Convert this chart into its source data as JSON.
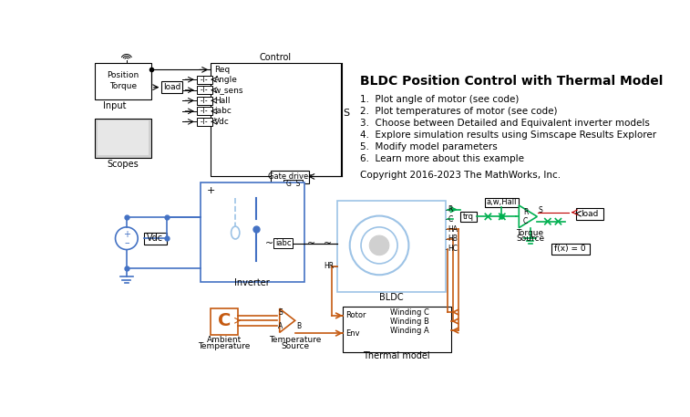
{
  "title": "BLDC Position Control with Thermal Model",
  "bullet_points": [
    "1.  Plot angle of motor (see code)",
    "2.  Plot temperatures of motor (see code)",
    "3.  Choose between Detailed and Equivalent inverter models",
    "4.  Explore simulation results using Simscape Results Explorer",
    "5.  Modify model parameters",
    "6.  Learn more about this example"
  ],
  "copyright": "Copyright 2016-2023 The MathWorks, Inc.",
  "bg_color": "#ffffff",
  "blue": "#4472c4",
  "light_blue": "#9dc3e6",
  "orange": "#c55a11",
  "green": "#00b050",
  "dark_red": "#c00000",
  "black": "#000000",
  "lgray": "#d0d0d0",
  "mgray": "#a0a0a0"
}
